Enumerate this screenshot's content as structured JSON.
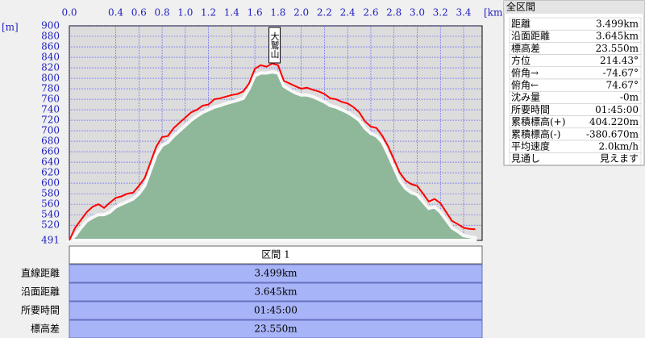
{
  "chart_data": {
    "type": "line",
    "x_unit": "[km]",
    "y_unit": "[m]",
    "x": [
      0,
      0.05,
      0.1,
      0.15,
      0.2,
      0.25,
      0.3,
      0.35,
      0.4,
      0.45,
      0.5,
      0.55,
      0.6,
      0.65,
      0.7,
      0.75,
      0.8,
      0.85,
      0.9,
      0.95,
      1,
      1.05,
      1.1,
      1.15,
      1.2,
      1.25,
      1.3,
      1.35,
      1.4,
      1.45,
      1.5,
      1.55,
      1.6,
      1.65,
      1.7,
      1.75,
      1.8,
      1.85,
      1.9,
      1.95,
      2,
      2.05,
      2.1,
      2.15,
      2.2,
      2.25,
      2.3,
      2.35,
      2.4,
      2.45,
      2.5,
      2.55,
      2.6,
      2.65,
      2.7,
      2.75,
      2.8,
      2.85,
      2.9,
      2.95,
      3,
      3.05,
      3.1,
      3.15,
      3.2,
      3.25,
      3.3,
      3.35,
      3.4,
      3.45,
      3.5
    ],
    "series": [
      {
        "color": "#8fb89a",
        "fill": true,
        "values": [
          491,
          500,
          515,
          528,
          535,
          540,
          540,
          545,
          555,
          560,
          565,
          570,
          580,
          595,
          625,
          655,
          672,
          678,
          690,
          700,
          710,
          720,
          728,
          735,
          740,
          745,
          748,
          752,
          755,
          758,
          762,
          780,
          805,
          810,
          810,
          812,
          810,
          785,
          778,
          772,
          768,
          768,
          765,
          760,
          755,
          748,
          745,
          740,
          735,
          728,
          720,
          705,
          695,
          690,
          678,
          655,
          630,
          605,
          590,
          582,
          578,
          565,
          552,
          555,
          545,
          530,
          515,
          508,
          500,
          498,
          496
        ]
      },
      {
        "color": "#ff0000",
        "fill": false,
        "values": [
          491,
          515,
          530,
          545,
          555,
          560,
          553,
          563,
          572,
          575,
          580,
          582,
          595,
          610,
          640,
          670,
          688,
          690,
          705,
          715,
          725,
          735,
          740,
          748,
          750,
          760,
          762,
          765,
          768,
          770,
          775,
          790,
          818,
          825,
          822,
          828,
          825,
          795,
          790,
          785,
          780,
          782,
          778,
          775,
          770,
          762,
          760,
          755,
          752,
          745,
          735,
          718,
          708,
          705,
          690,
          670,
          645,
          620,
          605,
          598,
          595,
          580,
          565,
          570,
          562,
          545,
          528,
          522,
          515,
          513,
          512
        ]
      }
    ],
    "xlim": [
      0,
      3.56
    ],
    "ylim": [
      491,
      900
    ],
    "xticks": [
      {
        "value": 0,
        "label": "0.0"
      },
      0.4,
      0.6,
      0.8,
      {
        "value": 1,
        "label": "1.0"
      },
      1.2,
      1.4,
      1.6,
      1.8,
      {
        "value": 2,
        "label": "2.0"
      },
      2.2,
      2.4,
      2.6,
      2.8,
      {
        "value": 3,
        "label": "3.0"
      },
      3.2,
      3.4
    ],
    "yticks": [
      900,
      880,
      860,
      840,
      820,
      800,
      780,
      760,
      740,
      720,
      700,
      680,
      660,
      640,
      620,
      600,
      580,
      560,
      540,
      520,
      491
    ],
    "grid": true,
    "annotations": [
      {
        "text": "大鷲山",
        "x": 1.77
      }
    ]
  },
  "section_table": {
    "header": "区間 1",
    "rows": [
      [
        "直線距離",
        "3.499km"
      ],
      [
        "沿面距離",
        "3.645km"
      ],
      [
        "所要時間",
        "01:45:00"
      ],
      [
        "標高差",
        "23.550m"
      ]
    ]
  },
  "summary_panel": {
    "title": "全区間",
    "rows": [
      [
        "距離",
        "3.499km"
      ],
      [
        "沿面距離",
        "3.645km"
      ],
      [
        "標高差",
        "23.550m"
      ],
      [
        "方位",
        "214.43°"
      ],
      [
        "俯角→",
        "-74.67°"
      ],
      [
        "俯角←",
        "74.67°"
      ],
      [
        "沈み量",
        "-0m"
      ],
      [
        "所要時間",
        "01:45:00"
      ],
      [
        "累積標高(+)",
        "404.220m"
      ],
      [
        "累積標高(-)",
        "-380.670m"
      ],
      [
        "平均速度",
        "2.0km/h"
      ],
      [
        "見通し",
        "見えます"
      ]
    ]
  }
}
